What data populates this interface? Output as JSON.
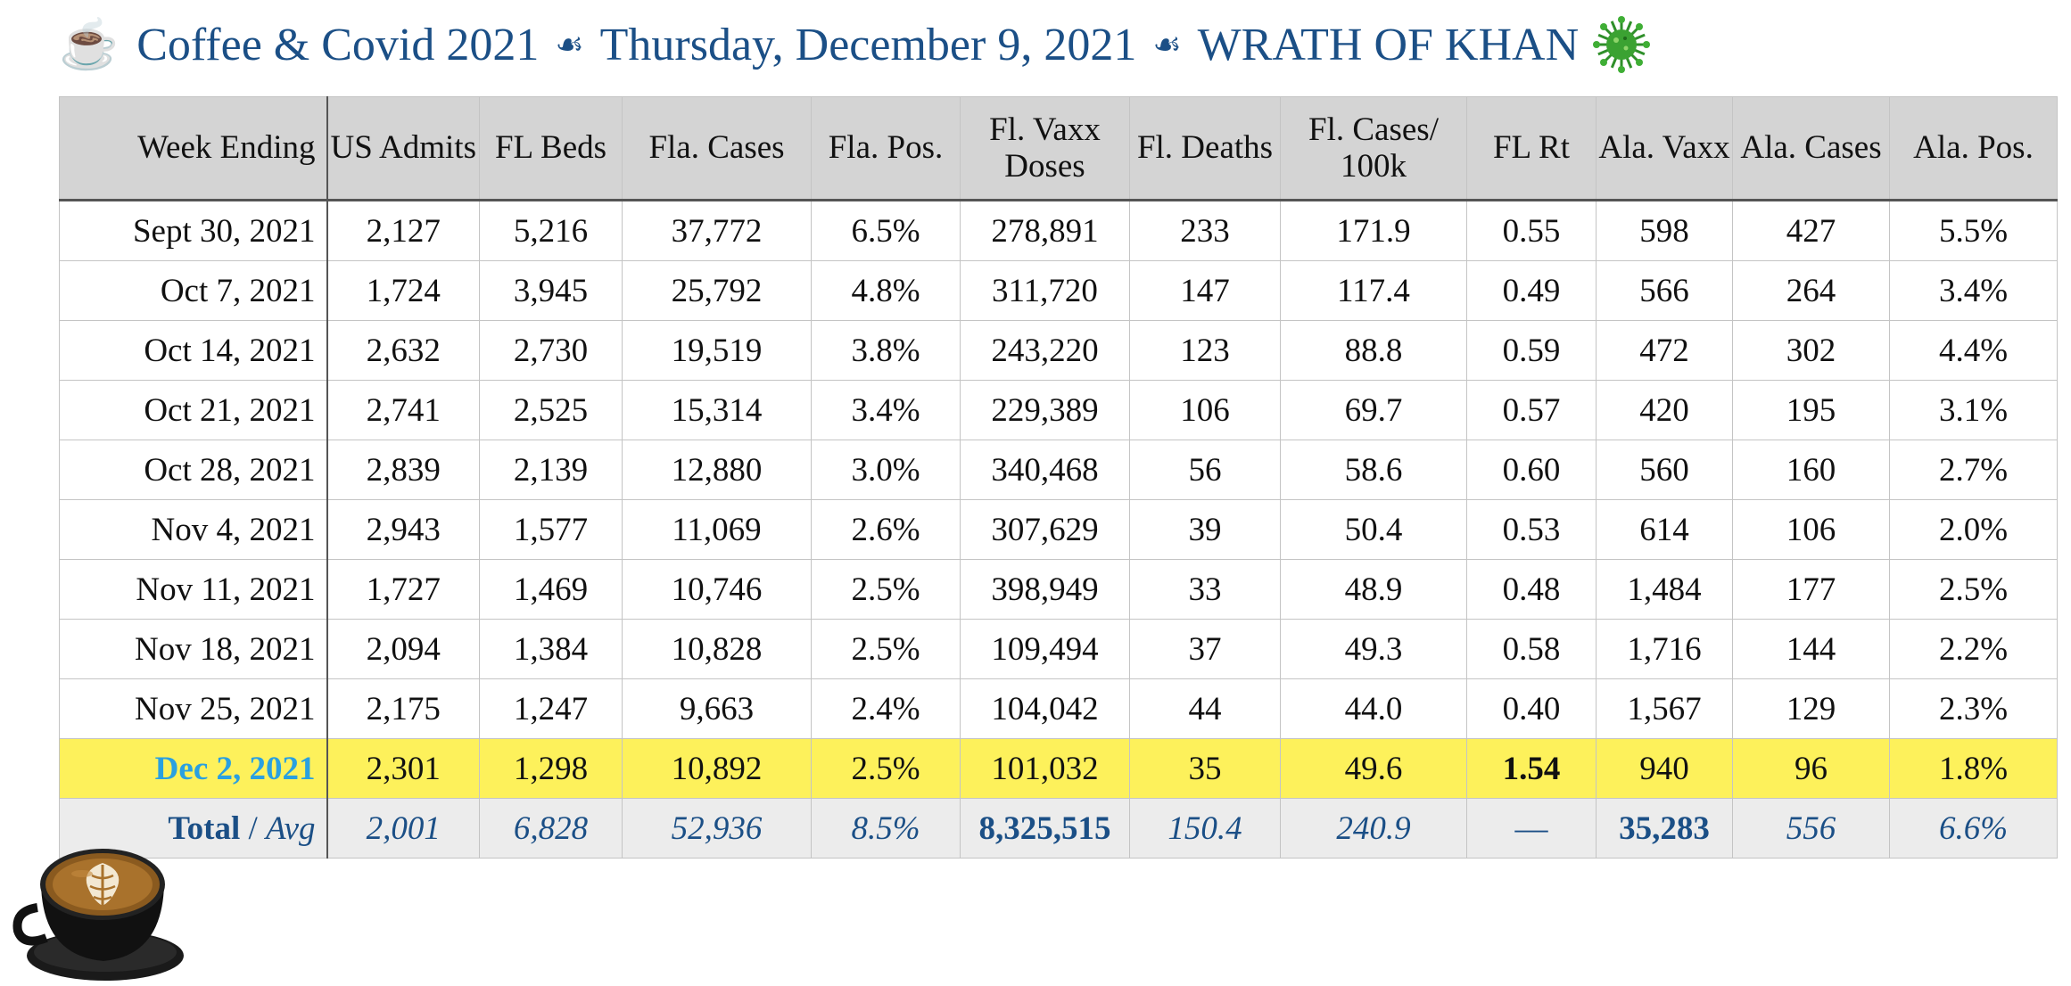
{
  "header": {
    "cup_emoji": "☕",
    "title": "Coffee & Covid 2021",
    "separator": "☙",
    "date": "Thursday, December 9, 2021",
    "headline": "WRATH OF KHAN"
  },
  "table": {
    "columns": [
      "Week Ending",
      "US Admits",
      "FL Beds",
      "Fla. Cases",
      "Fla. Pos.",
      "Fl. Vaxx Doses",
      "Fl. Deaths",
      "Fl. Cases/ 100k",
      "FL Rt",
      "Ala. Vaxx",
      "Ala. Cases",
      "Ala. Pos."
    ],
    "rows": [
      [
        "Sept 30, 2021",
        "2,127",
        "5,216",
        "37,772",
        "6.5%",
        "278,891",
        "233",
        "171.9",
        "0.55",
        "598",
        "427",
        "5.5%"
      ],
      [
        "Oct 7, 2021",
        "1,724",
        "3,945",
        "25,792",
        "4.8%",
        "311,720",
        "147",
        "117.4",
        "0.49",
        "566",
        "264",
        "3.4%"
      ],
      [
        "Oct 14, 2021",
        "2,632",
        "2,730",
        "19,519",
        "3.8%",
        "243,220",
        "123",
        "88.8",
        "0.59",
        "472",
        "302",
        "4.4%"
      ],
      [
        "Oct 21, 2021",
        "2,741",
        "2,525",
        "15,314",
        "3.4%",
        "229,389",
        "106",
        "69.7",
        "0.57",
        "420",
        "195",
        "3.1%"
      ],
      [
        "Oct 28, 2021",
        "2,839",
        "2,139",
        "12,880",
        "3.0%",
        "340,468",
        "56",
        "58.6",
        "0.60",
        "560",
        "160",
        "2.7%"
      ],
      [
        "Nov 4, 2021",
        "2,943",
        "1,577",
        "11,069",
        "2.6%",
        "307,629",
        "39",
        "50.4",
        "0.53",
        "614",
        "106",
        "2.0%"
      ],
      [
        "Nov 11, 2021",
        "1,727",
        "1,469",
        "10,746",
        "2.5%",
        "398,949",
        "33",
        "48.9",
        "0.48",
        "1,484",
        "177",
        "2.5%"
      ],
      [
        "Nov 18, 2021",
        "2,094",
        "1,384",
        "10,828",
        "2.5%",
        "109,494",
        "37",
        "49.3",
        "0.58",
        "1,716",
        "144",
        "2.2%"
      ],
      [
        "Nov 25, 2021",
        "2,175",
        "1,247",
        "9,663",
        "2.4%",
        "104,042",
        "44",
        "44.0",
        "0.40",
        "1,567",
        "129",
        "2.3%"
      ]
    ],
    "highlight_row": [
      "Dec 2, 2021",
      "2,301",
      "1,298",
      "10,892",
      "2.5%",
      "101,032",
      "35",
      "49.6",
      "1.54",
      "940",
      "96",
      "1.8%"
    ],
    "total_row": {
      "label_total": "Total",
      "label_sep": " / ",
      "label_avg": "Avg",
      "values": [
        "2,001",
        "6,828",
        "52,936",
        "8.5%",
        "8,325,515",
        "150.4",
        "240.9",
        "—",
        "35,283",
        "556",
        "6.6%"
      ]
    }
  },
  "colors": {
    "title_blue": "#1b4f86",
    "highlight_yellow": "#fdf15b",
    "highlight_date_blue": "#2aa0e0",
    "header_gray": "#d4d4d4",
    "total_gray": "#ececec"
  },
  "icons": {
    "virus": "coronavirus-icon",
    "coffee": "latte-cup-image"
  }
}
